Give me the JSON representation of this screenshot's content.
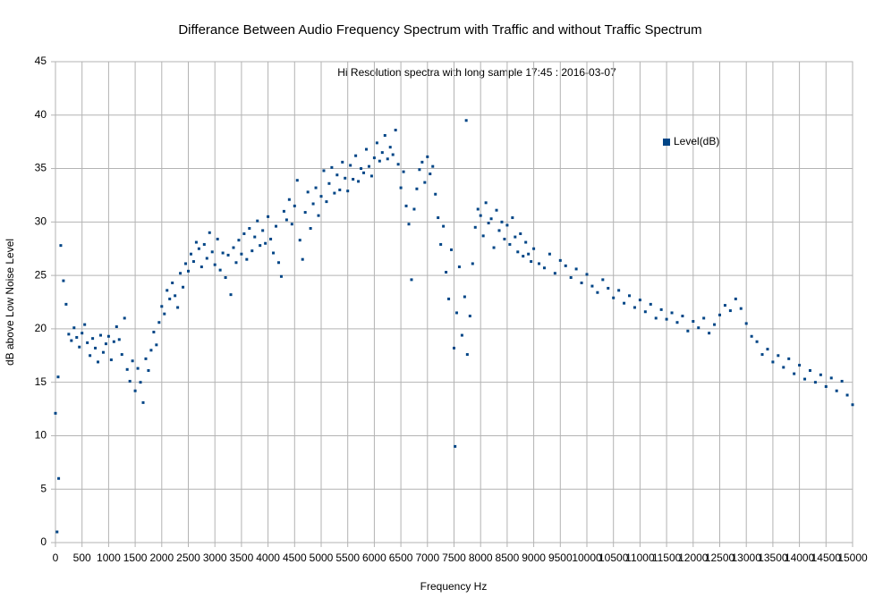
{
  "chart_data": {
    "type": "scatter",
    "title": "Differance Between Audio Frequency Spectrum with Traffic and without Traffic Spectrum",
    "annotation": "Hi Resolution spectra with long sample 17:45 : 2016-03-07",
    "x_label": "Frequency Hz",
    "y_label": "dB above Low Noise Level",
    "xlim": [
      0,
      15000
    ],
    "ylim": [
      0,
      45
    ],
    "xticks": [
      0,
      500,
      1000,
      1500,
      2000,
      2500,
      3000,
      3500,
      4000,
      4500,
      5000,
      5500,
      6000,
      6500,
      7000,
      7500,
      8000,
      8500,
      9000,
      9500,
      10000,
      10500,
      11000,
      11500,
      12000,
      12500,
      13000,
      13500,
      14000,
      14500,
      15000
    ],
    "yticks": [
      0,
      5,
      10,
      15,
      20,
      25,
      30,
      35,
      40,
      45
    ],
    "grid": true,
    "legend": "upper right",
    "x": [
      0,
      30,
      50,
      60,
      100,
      150,
      200,
      250,
      300,
      350,
      400,
      450,
      500,
      550,
      600,
      650,
      700,
      750,
      800,
      850,
      900,
      950,
      1000,
      1050,
      1100,
      1150,
      1200,
      1250,
      1300,
      1350,
      1400,
      1450,
      1500,
      1550,
      1600,
      1650,
      1700,
      1750,
      1800,
      1850,
      1900,
      1950,
      2000,
      2050,
      2100,
      2150,
      2200,
      2250,
      2300,
      2350,
      2400,
      2450,
      2500,
      2550,
      2600,
      2650,
      2700,
      2750,
      2800,
      2850,
      2900,
      2950,
      3000,
      3050,
      3100,
      3150,
      3200,
      3250,
      3300,
      3350,
      3400,
      3450,
      3500,
      3550,
      3600,
      3650,
      3700,
      3750,
      3800,
      3850,
      3900,
      3950,
      4000,
      4050,
      4100,
      4150,
      4200,
      4250,
      4300,
      4350,
      4400,
      4450,
      4500,
      4550,
      4600,
      4650,
      4700,
      4750,
      4800,
      4850,
      4900,
      4950,
      5000,
      5050,
      5100,
      5150,
      5200,
      5250,
      5300,
      5350,
      5400,
      5450,
      5500,
      5550,
      5600,
      5650,
      5700,
      5750,
      5800,
      5850,
      5900,
      5950,
      6000,
      6050,
      6100,
      6150,
      6200,
      6250,
      6300,
      6350,
      6400,
      6450,
      6500,
      6550,
      6600,
      6650,
      6700,
      6750,
      6800,
      6850,
      6900,
      6950,
      7000,
      7050,
      7100,
      7150,
      7200,
      7250,
      7300,
      7350,
      7400,
      7450,
      7500,
      7520,
      7550,
      7600,
      7650,
      7700,
      7730,
      7750,
      7800,
      7850,
      7900,
      7950,
      8000,
      8050,
      8100,
      8150,
      8200,
      8250,
      8300,
      8350,
      8400,
      8450,
      8500,
      8550,
      8600,
      8650,
      8700,
      8750,
      8800,
      8850,
      8900,
      8950,
      9000,
      9100,
      9200,
      9300,
      9400,
      9500,
      9600,
      9700,
      9800,
      9900,
      10000,
      10100,
      10200,
      10300,
      10400,
      10500,
      10600,
      10700,
      10800,
      10900,
      11000,
      11100,
      11200,
      11300,
      11400,
      11500,
      11600,
      11700,
      11800,
      11900,
      12000,
      12100,
      12200,
      12300,
      12400,
      12500,
      12600,
      12700,
      12800,
      12900,
      13000,
      13100,
      13200,
      13300,
      13400,
      13500,
      13600,
      13700,
      13800,
      13900,
      14000,
      14100,
      14200,
      14300,
      14400,
      14500,
      14600,
      14700,
      14800,
      14900,
      15000
    ],
    "series": [
      {
        "name": "Level(dB)",
        "color": "#004586",
        "values": [
          12.1,
          1.0,
          15.5,
          6.0,
          27.8,
          24.5,
          22.3,
          19.5,
          18.9,
          20.1,
          19.2,
          18.3,
          19.6,
          20.4,
          18.7,
          17.5,
          19.1,
          18.2,
          16.9,
          19.4,
          17.8,
          18.6,
          19.3,
          17.1,
          18.8,
          20.2,
          19.0,
          17.6,
          21.0,
          16.2,
          15.1,
          17.0,
          14.2,
          16.3,
          15.0,
          13.1,
          17.2,
          16.1,
          18.0,
          19.7,
          18.5,
          20.6,
          22.1,
          21.4,
          23.6,
          22.8,
          24.3,
          23.1,
          22.0,
          25.2,
          23.9,
          26.1,
          25.4,
          27.0,
          26.3,
          28.1,
          27.5,
          25.8,
          27.9,
          26.6,
          29.0,
          27.2,
          26.0,
          28.4,
          25.5,
          27.1,
          24.8,
          26.9,
          23.2,
          27.6,
          26.2,
          28.3,
          27.0,
          28.9,
          26.5,
          29.4,
          27.3,
          28.6,
          30.1,
          27.8,
          29.2,
          28.0,
          30.5,
          28.4,
          27.1,
          29.6,
          26.2,
          24.9,
          31.0,
          30.2,
          32.1,
          29.8,
          31.5,
          33.9,
          28.3,
          26.5,
          30.9,
          32.8,
          29.4,
          31.7,
          33.2,
          30.6,
          32.4,
          34.8,
          31.9,
          33.6,
          35.1,
          32.7,
          34.4,
          33.0,
          35.6,
          34.1,
          32.9,
          35.3,
          34.0,
          36.2,
          33.8,
          35.0,
          34.6,
          36.8,
          35.2,
          34.3,
          36.0,
          37.4,
          35.7,
          36.5,
          38.1,
          35.9,
          37.0,
          36.3,
          38.6,
          35.4,
          33.2,
          34.7,
          31.5,
          29.8,
          24.6,
          31.2,
          33.1,
          34.9,
          35.6,
          33.7,
          36.1,
          34.5,
          35.2,
          32.6,
          30.4,
          27.9,
          29.6,
          25.3,
          22.8,
          27.4,
          18.2,
          9.0,
          21.5,
          25.8,
          19.4,
          23.0,
          39.5,
          17.6,
          21.2,
          26.1,
          29.5,
          31.2,
          30.6,
          28.7,
          31.8,
          29.9,
          30.3,
          27.6,
          31.1,
          29.2,
          30.0,
          28.4,
          29.7,
          27.9,
          30.4,
          28.6,
          27.2,
          28.9,
          26.8,
          28.1,
          27.0,
          26.3,
          27.5,
          26.1,
          25.7,
          27.0,
          25.2,
          26.4,
          25.9,
          24.8,
          25.6,
          24.3,
          25.1,
          24.0,
          23.4,
          24.6,
          23.8,
          22.9,
          23.6,
          22.4,
          23.1,
          22.0,
          22.7,
          21.6,
          22.3,
          21.0,
          21.8,
          20.9,
          21.5,
          20.6,
          21.2,
          19.8,
          20.7,
          20.1,
          21.0,
          19.6,
          20.4,
          21.3,
          22.2,
          21.7,
          22.8,
          21.9,
          20.5,
          19.3,
          18.8,
          17.6,
          18.1,
          16.9,
          17.5,
          16.4,
          17.2,
          15.8,
          16.6,
          15.3,
          16.1,
          15.0,
          15.7,
          14.6,
          15.4,
          14.2,
          15.1,
          13.8,
          12.9
        ]
      }
    ]
  }
}
